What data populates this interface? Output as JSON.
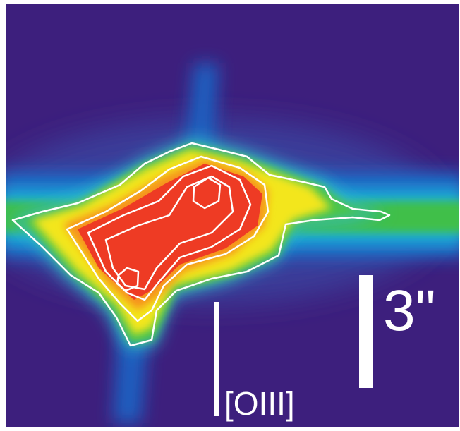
{
  "labels": {
    "line": "[OIII]",
    "scale": "3\""
  }
}
